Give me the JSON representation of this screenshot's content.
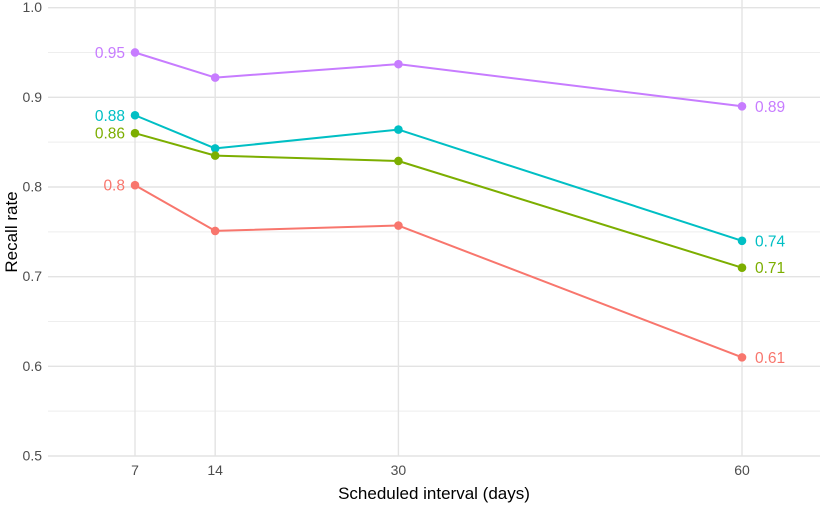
{
  "chart_data": {
    "type": "line",
    "x": [
      7,
      14,
      30,
      60
    ],
    "x_tick_labels": [
      "7",
      "14",
      "30",
      "60"
    ],
    "y_ticks": [
      0.5,
      0.6,
      0.7,
      0.8,
      0.9,
      1.0
    ],
    "y_tick_labels": [
      "0.5",
      "0.6",
      "0.7",
      "0.8",
      "0.9",
      "1.0"
    ],
    "y_minor_ticks": [
      0.55,
      0.65,
      0.75,
      0.85,
      0.95
    ],
    "xlim": [
      7,
      60
    ],
    "ylim": [
      0.5,
      1.0
    ],
    "xlabel": "Scheduled interval (days)",
    "ylabel": "Recall rate",
    "grid": "on",
    "legend": "none",
    "series": [
      {
        "name": "purple",
        "color": "#C77CFF",
        "values": [
          0.95,
          0.922,
          0.937,
          0.89
        ],
        "start_label": "0.95",
        "end_label": "0.89"
      },
      {
        "name": "teal",
        "color": "#00BFC4",
        "values": [
          0.88,
          0.843,
          0.864,
          0.74
        ],
        "start_label": "0.88",
        "end_label": "0.74"
      },
      {
        "name": "olive",
        "color": "#7CAE00",
        "values": [
          0.86,
          0.835,
          0.829,
          0.71
        ],
        "start_label": "0.86",
        "end_label": "0.71"
      },
      {
        "name": "red",
        "color": "#F8766D",
        "values": [
          0.802,
          0.751,
          0.757,
          0.61
        ],
        "start_label": "0.8",
        "end_label": "0.61"
      }
    ],
    "colors": {
      "grid_major": "#E3E3E3",
      "grid_minor": "#EEEEEE",
      "tick_text": "#4D4D4D",
      "axis_title_text": "#000000",
      "background": "#FFFFFF"
    }
  }
}
